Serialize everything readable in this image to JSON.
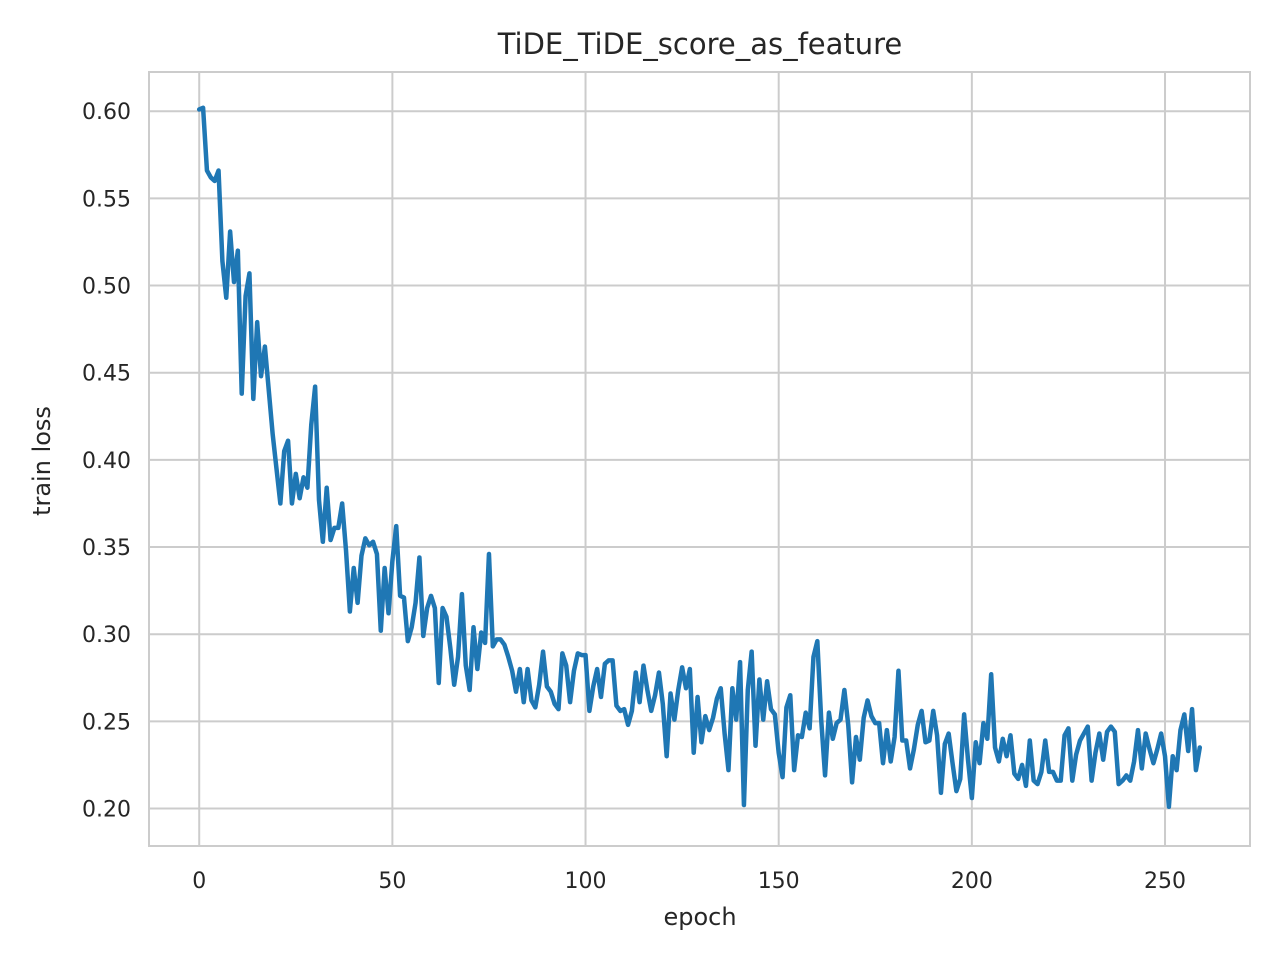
{
  "chart_data": {
    "type": "line",
    "title": "TiDE_TiDE_score_as_feature",
    "xlabel": "epoch",
    "ylabel": "train loss",
    "xlim": [
      -13,
      272
    ],
    "ylim": [
      0.1785,
      0.6225
    ],
    "xticks": [
      0,
      50,
      100,
      150,
      200,
      250
    ],
    "yticks": [
      0.2,
      0.25,
      0.3,
      0.35,
      0.4,
      0.45,
      0.5,
      0.55,
      0.6
    ],
    "xtick_labels": [
      "0",
      "50",
      "100",
      "150",
      "200",
      "250"
    ],
    "ytick_labels": [
      "0.20",
      "0.25",
      "0.30",
      "0.35",
      "0.40",
      "0.45",
      "0.50",
      "0.55",
      "0.60"
    ],
    "grid": true,
    "colors": {
      "line": "#1f77b4",
      "grid": "#cccccc",
      "text": "#262626"
    },
    "series": [
      {
        "y": [
          0.601,
          0.602,
          0.566,
          0.562,
          0.56,
          0.566,
          0.514,
          0.493,
          0.531,
          0.502,
          0.52,
          0.438,
          0.494,
          0.507,
          0.435,
          0.479,
          0.448,
          0.465,
          0.44,
          0.415,
          0.395,
          0.375,
          0.405,
          0.411,
          0.375,
          0.392,
          0.378,
          0.39,
          0.384,
          0.42,
          0.442,
          0.377,
          0.353,
          0.384,
          0.354,
          0.361,
          0.361,
          0.375,
          0.348,
          0.313,
          0.338,
          0.318,
          0.345,
          0.355,
          0.351,
          0.353,
          0.346,
          0.302,
          0.338,
          0.312,
          0.342,
          0.362,
          0.322,
          0.321,
          0.296,
          0.304,
          0.318,
          0.344,
          0.299,
          0.315,
          0.322,
          0.315,
          0.272,
          0.315,
          0.31,
          0.292,
          0.271,
          0.287,
          0.323,
          0.282,
          0.268,
          0.304,
          0.28,
          0.301,
          0.295,
          0.346,
          0.293,
          0.297,
          0.297,
          0.294,
          0.287,
          0.279,
          0.267,
          0.28,
          0.261,
          0.28,
          0.262,
          0.258,
          0.271,
          0.29,
          0.27,
          0.267,
          0.26,
          0.257,
          0.289,
          0.282,
          0.261,
          0.279,
          0.289,
          0.288,
          0.288,
          0.256,
          0.27,
          0.28,
          0.264,
          0.283,
          0.285,
          0.285,
          0.259,
          0.256,
          0.257,
          0.248,
          0.256,
          0.278,
          0.261,
          0.282,
          0.268,
          0.256,
          0.265,
          0.278,
          0.26,
          0.23,
          0.266,
          0.251,
          0.268,
          0.281,
          0.269,
          0.28,
          0.232,
          0.264,
          0.238,
          0.253,
          0.245,
          0.252,
          0.263,
          0.269,
          0.243,
          0.222,
          0.269,
          0.251,
          0.284,
          0.202,
          0.268,
          0.29,
          0.236,
          0.274,
          0.251,
          0.273,
          0.257,
          0.254,
          0.232,
          0.218,
          0.258,
          0.265,
          0.222,
          0.242,
          0.241,
          0.255,
          0.246,
          0.287,
          0.296,
          0.251,
          0.219,
          0.255,
          0.24,
          0.249,
          0.251,
          0.268,
          0.248,
          0.215,
          0.241,
          0.228,
          0.252,
          0.262,
          0.253,
          0.249,
          0.249,
          0.226,
          0.245,
          0.227,
          0.241,
          0.279,
          0.239,
          0.239,
          0.223,
          0.234,
          0.248,
          0.256,
          0.238,
          0.239,
          0.256,
          0.242,
          0.209,
          0.237,
          0.243,
          0.226,
          0.21,
          0.217,
          0.254,
          0.228,
          0.206,
          0.238,
          0.226,
          0.249,
          0.24,
          0.277,
          0.235,
          0.227,
          0.24,
          0.23,
          0.242,
          0.22,
          0.217,
          0.225,
          0.213,
          0.239,
          0.216,
          0.214,
          0.221,
          0.239,
          0.221,
          0.221,
          0.216,
          0.216,
          0.242,
          0.246,
          0.216,
          0.231,
          0.239,
          0.243,
          0.247,
          0.216,
          0.232,
          0.243,
          0.228,
          0.244,
          0.247,
          0.244,
          0.214,
          0.216,
          0.219,
          0.216,
          0.227,
          0.245,
          0.223,
          0.243,
          0.234,
          0.226,
          0.234,
          0.243,
          0.23,
          0.201,
          0.23,
          0.222,
          0.245,
          0.254,
          0.233,
          0.257,
          0.222,
          0.235
        ]
      }
    ]
  }
}
